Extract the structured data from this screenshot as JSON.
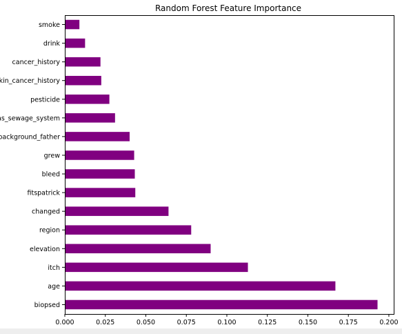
{
  "chart_data": {
    "type": "bar",
    "orientation": "horizontal",
    "title": "Random Forest Feature Importance",
    "xlabel": "",
    "ylabel": "",
    "categories": [
      "biopsed",
      "age",
      "itch",
      "elevation",
      "region",
      "changed",
      "fitspatrick",
      "bleed",
      "grew",
      "background_father",
      "has_sewage_system",
      "pesticide",
      "skin_cancer_history",
      "cancer_history",
      "drink",
      "smoke"
    ],
    "values": [
      0.193,
      0.167,
      0.113,
      0.09,
      0.078,
      0.064,
      0.0435,
      0.0432,
      0.0428,
      0.04,
      0.031,
      0.0275,
      0.0225,
      0.022,
      0.0125,
      0.009
    ],
    "xlim": [
      0,
      0.203
    ],
    "xticks": [
      "0.000",
      "0.025",
      "0.050",
      "0.075",
      "0.100",
      "0.125",
      "0.150",
      "0.175",
      "0.200"
    ],
    "bar_color": "#800080",
    "grid": false,
    "legend": "none"
  }
}
